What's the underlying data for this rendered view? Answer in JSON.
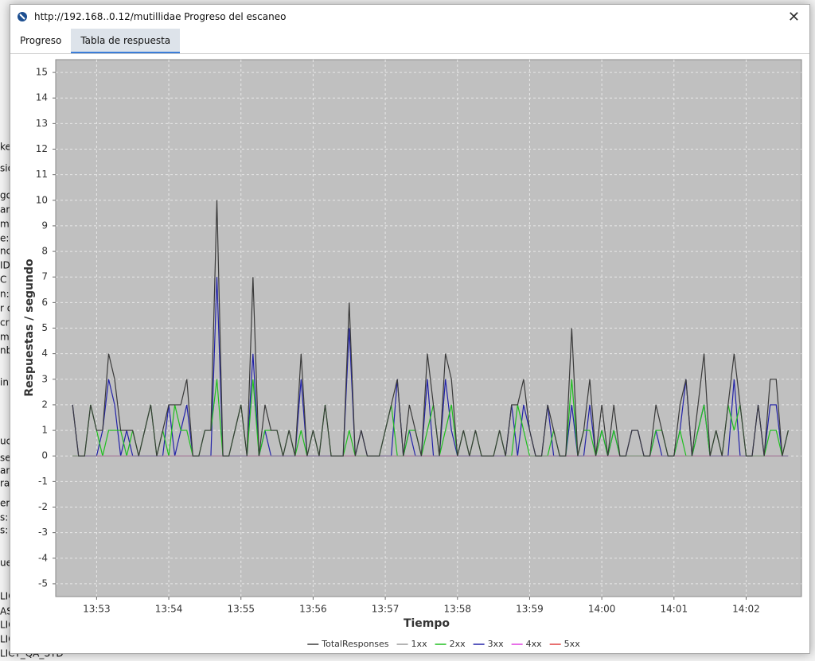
{
  "window": {
    "title": "http://192.168..0.12/mutillidae Progreso del escaneo"
  },
  "tabs": [
    "Progreso",
    "Tabla de respuesta"
  ],
  "background": {
    "left_fragments": [
      "ke",
      "sió",
      "go:",
      "an",
      "me",
      "e:",
      "nc",
      "ID",
      "C II",
      "n:",
      "r d",
      "cri",
      "mo",
      "nb",
      "in",
      "uci",
      "se:",
      "ang",
      "rac",
      "ere",
      "s:",
      "s:",
      "ue",
      "LIC",
      "AS",
      "LIC",
      "LIC",
      "LICY_QA_STD"
    ]
  },
  "chart_data": {
    "type": "line",
    "xlabel": "Tiempo",
    "ylabel": "Respuestas / segundo",
    "x": [
      49960,
      49965,
      49970,
      49975,
      49980,
      49985,
      49990,
      49995,
      50000,
      50005,
      50010,
      50015,
      50020,
      50025,
      50030,
      50035,
      50040,
      50045,
      50050,
      50055,
      50060,
      50065,
      50070,
      50075,
      50080,
      50085,
      50090,
      50095,
      50100,
      50105,
      50110,
      50115,
      50120,
      50125,
      50130,
      50135,
      50140,
      50145,
      50150,
      50155,
      50160,
      50165,
      50170,
      50175,
      50180,
      50185,
      50190,
      50195,
      50200,
      50205,
      50210,
      50215,
      50220,
      50225,
      50230,
      50235,
      50240,
      50245,
      50250,
      50255,
      50260,
      50265,
      50270,
      50275,
      50280,
      50285,
      50290,
      50295,
      50300,
      50305,
      50310,
      50315,
      50320,
      50325,
      50330,
      50335,
      50340,
      50345,
      50350,
      50355,
      50360,
      50365,
      50370,
      50375,
      50380,
      50385,
      50390,
      50395,
      50400,
      50405,
      50410,
      50415,
      50420,
      50425,
      50430,
      50435,
      50440,
      50445,
      50450,
      50455,
      50460,
      50465,
      50470,
      50475,
      50480,
      50485,
      50490,
      50495,
      50500,
      50505,
      50510,
      50515,
      50520,
      50525,
      50530,
      50535,
      50540,
      50545,
      50550,
      50555
    ],
    "series": [
      {
        "name": "TotalResponses",
        "color": "#3a3a3a",
        "values": [
          2,
          0,
          0,
          2,
          1,
          1,
          4,
          3,
          1,
          1,
          1,
          0,
          1,
          2,
          0,
          1,
          2,
          2,
          2,
          3,
          0,
          0,
          1,
          1,
          10,
          0,
          0,
          1,
          2,
          0,
          7,
          0,
          2,
          1,
          1,
          0,
          1,
          0,
          4,
          0,
          1,
          0,
          2,
          0,
          0,
          0,
          6,
          0,
          1,
          0,
          0,
          0,
          1,
          2,
          3,
          0,
          2,
          1,
          0,
          4,
          2,
          0,
          4,
          3,
          0,
          1,
          0,
          1,
          0,
          0,
          0,
          1,
          0,
          2,
          2,
          3,
          1,
          0,
          0,
          2,
          1,
          0,
          0,
          5,
          0,
          1,
          3,
          0,
          2,
          0,
          2,
          0,
          0,
          1,
          1,
          0,
          0,
          2,
          1,
          0,
          0,
          2,
          3,
          0,
          2,
          4,
          0,
          1,
          0,
          2,
          4,
          2,
          0,
          0,
          2,
          0,
          3,
          3,
          0,
          1
        ]
      },
      {
        "name": "1xx",
        "color": "#9a9a9a",
        "values": [
          0,
          0,
          0,
          0,
          0,
          0,
          0,
          0,
          0,
          0,
          0,
          0,
          0,
          0,
          0,
          0,
          0,
          0,
          0,
          0,
          0,
          0,
          0,
          0,
          0,
          0,
          0,
          0,
          0,
          0,
          0,
          0,
          0,
          0,
          0,
          0,
          0,
          0,
          0,
          0,
          0,
          0,
          0,
          0,
          0,
          0,
          0,
          0,
          0,
          0,
          0,
          0,
          0,
          0,
          0,
          0,
          0,
          0,
          0,
          0,
          0,
          0,
          0,
          0,
          0,
          0,
          0,
          0,
          0,
          0,
          0,
          0,
          0,
          0,
          0,
          0,
          0,
          0,
          0,
          0,
          0,
          0,
          0,
          0,
          0,
          0,
          0,
          0,
          0,
          0,
          0,
          0,
          0,
          0,
          0,
          0,
          0,
          0,
          0,
          0,
          0,
          0,
          0,
          0,
          0,
          0,
          0,
          0,
          0,
          0,
          0,
          0,
          0,
          0,
          0,
          0,
          0,
          0,
          0,
          0
        ]
      },
      {
        "name": "2xx",
        "color": "#1fbf1f",
        "values": [
          0,
          0,
          0,
          2,
          1,
          0,
          1,
          1,
          1,
          0,
          1,
          0,
          1,
          2,
          0,
          1,
          0,
          2,
          1,
          1,
          0,
          0,
          1,
          1,
          3,
          0,
          0,
          1,
          2,
          0,
          3,
          0,
          1,
          1,
          1,
          0,
          1,
          0,
          1,
          0,
          1,
          0,
          2,
          0,
          0,
          0,
          1,
          0,
          0,
          0,
          0,
          0,
          1,
          2,
          0,
          0,
          1,
          1,
          0,
          1,
          2,
          0,
          1,
          2,
          0,
          1,
          0,
          1,
          0,
          0,
          0,
          1,
          0,
          0,
          2,
          1,
          0,
          0,
          0,
          0,
          1,
          0,
          0,
          3,
          0,
          1,
          1,
          0,
          1,
          0,
          1,
          0,
          0,
          0,
          0,
          0,
          0,
          1,
          1,
          0,
          0,
          1,
          0,
          0,
          1,
          2,
          0,
          1,
          0,
          2,
          1,
          2,
          0,
          0,
          0,
          0,
          1,
          1,
          0,
          1
        ]
      },
      {
        "name": "3xx",
        "color": "#2222a8",
        "values": [
          2,
          0,
          0,
          0,
          0,
          1,
          3,
          2,
          0,
          1,
          0,
          0,
          0,
          0,
          0,
          0,
          2,
          0,
          1,
          2,
          0,
          0,
          0,
          0,
          7,
          0,
          0,
          0,
          0,
          0,
          4,
          0,
          1,
          0,
          0,
          0,
          0,
          0,
          3,
          0,
          0,
          0,
          0,
          0,
          0,
          0,
          5,
          0,
          1,
          0,
          0,
          0,
          0,
          0,
          3,
          0,
          1,
          0,
          0,
          3,
          0,
          0,
          3,
          1,
          0,
          0,
          0,
          0,
          0,
          0,
          0,
          0,
          0,
          2,
          0,
          2,
          1,
          0,
          0,
          2,
          0,
          0,
          0,
          2,
          0,
          0,
          2,
          0,
          1,
          0,
          1,
          0,
          0,
          1,
          1,
          0,
          0,
          1,
          0,
          0,
          0,
          1,
          3,
          0,
          1,
          2,
          0,
          0,
          0,
          0,
          3,
          0,
          0,
          0,
          2,
          0,
          2,
          2,
          0,
          0
        ]
      },
      {
        "name": "4xx",
        "color": "#e040e0",
        "values": [
          0,
          0,
          0,
          0,
          0,
          0,
          0,
          0,
          0,
          0,
          0,
          0,
          0,
          0,
          0,
          0,
          0,
          0,
          0,
          0,
          0,
          0,
          0,
          0,
          0,
          0,
          0,
          0,
          0,
          0,
          0,
          0,
          0,
          0,
          0,
          0,
          0,
          0,
          0,
          0,
          0,
          0,
          0,
          0,
          0,
          0,
          0,
          0,
          0,
          0,
          0,
          0,
          0,
          0,
          0,
          0,
          0,
          0,
          0,
          0,
          0,
          0,
          0,
          0,
          0,
          0,
          0,
          0,
          0,
          0,
          0,
          0,
          0,
          0,
          0,
          0,
          0,
          0,
          0,
          0,
          0,
          0,
          0,
          0,
          0,
          0,
          0,
          0,
          0,
          0,
          0,
          0,
          0,
          0,
          0,
          0,
          0,
          0,
          0,
          0,
          0,
          0,
          0,
          0,
          0,
          0,
          0,
          0,
          0,
          0,
          0,
          0,
          0,
          0,
          0,
          0,
          0,
          0,
          0,
          0
        ]
      },
      {
        "name": "5xx",
        "color": "#e04040",
        "values": [
          0,
          0,
          0,
          0,
          0,
          0,
          0,
          0,
          0,
          0,
          0,
          0,
          0,
          0,
          0,
          0,
          0,
          0,
          0,
          0,
          0,
          0,
          0,
          0,
          0,
          0,
          0,
          0,
          0,
          0,
          0,
          0,
          0,
          0,
          0,
          0,
          0,
          0,
          0,
          0,
          0,
          0,
          0,
          0,
          0,
          0,
          0,
          0,
          0,
          0,
          0,
          0,
          0,
          0,
          0,
          0,
          0,
          0,
          0,
          0,
          0,
          0,
          0,
          0,
          0,
          0,
          0,
          0,
          0,
          0,
          0,
          0,
          0,
          0,
          0,
          0,
          0,
          0,
          0,
          0,
          0,
          0,
          0,
          0,
          0,
          0,
          0,
          0,
          0,
          0,
          0,
          0,
          0,
          0,
          0,
          0,
          0,
          0,
          0,
          0,
          0,
          0,
          0,
          0,
          0,
          0,
          0,
          0,
          0,
          0,
          0,
          0,
          0,
          0,
          0,
          0,
          0,
          0,
          0,
          0
        ]
      }
    ],
    "xlim": [
      49946,
      50566
    ],
    "xticks": [
      {
        "value": 49980,
        "label": "13:53"
      },
      {
        "value": 50040,
        "label": "13:54"
      },
      {
        "value": 50100,
        "label": "13:55"
      },
      {
        "value": 50160,
        "label": "13:56"
      },
      {
        "value": 50220,
        "label": "13:57"
      },
      {
        "value": 50280,
        "label": "13:58"
      },
      {
        "value": 50340,
        "label": "13:59"
      },
      {
        "value": 50400,
        "label": "14:00"
      },
      {
        "value": 50460,
        "label": "14:01"
      },
      {
        "value": 50520,
        "label": "14:02"
      }
    ],
    "ylim": [
      -5.5,
      15.5
    ],
    "yticks": [
      -5,
      -4,
      -3,
      -2,
      -1,
      0,
      1,
      2,
      3,
      4,
      5,
      6,
      7,
      8,
      9,
      10,
      11,
      12,
      13,
      14,
      15
    ],
    "grid": true,
    "legend": "bottom"
  }
}
